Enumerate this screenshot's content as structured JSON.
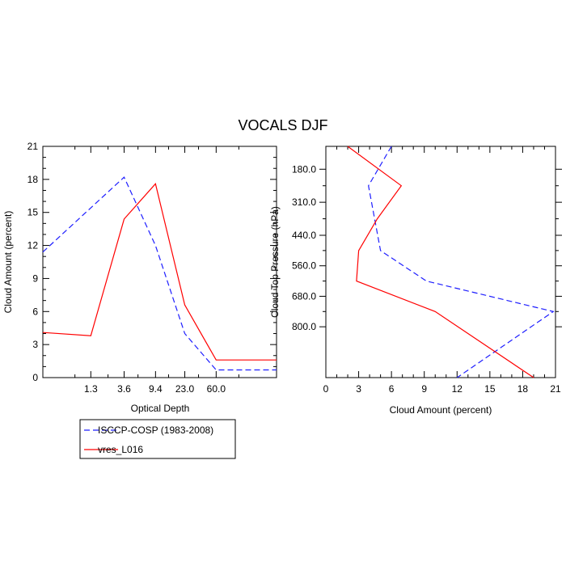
{
  "colors": {
    "isccp": "#1e1eff",
    "model": "#ff0000",
    "axis": "#000000"
  },
  "chart_data": [
    {
      "type": "line",
      "title": "VOCALS DJF",
      "xlabel": "Optical Depth",
      "ylabel": "Cloud Amount (percent)",
      "x_tick_labels": [
        "1.3",
        "3.6",
        "9.4",
        "23.0",
        "60.0"
      ],
      "y_ticks": [
        0,
        3,
        6,
        9,
        12,
        15,
        18,
        21
      ],
      "ylim": [
        0,
        21
      ],
      "x_scale": "categorical bins (log optical depth)",
      "series": [
        {
          "name": "ISCCP-COSP (1983-2008)",
          "style": "dashed",
          "x": [
            0.3,
            3.6,
            9.4,
            23.0,
            60.0,
            380.0
          ],
          "values": [
            11.4,
            18.2,
            12.0,
            4.0,
            0.7,
            0.7
          ]
        },
        {
          "name": "vres_L016",
          "style": "solid",
          "x": [
            0.3,
            1.3,
            3.6,
            9.4,
            23.0,
            60.0,
            380.0
          ],
          "values": [
            4.1,
            3.8,
            14.4,
            17.6,
            6.6,
            1.6,
            1.6
          ]
        }
      ],
      "legend": {
        "position": "bottom-left",
        "entries": [
          "ISCCP-COSP (1983-2008)",
          "vres_L016"
        ]
      }
    },
    {
      "type": "line",
      "xlabel": "Cloud Amount (percent)",
      "ylabel": "Cloud Top Pressure (hPa)",
      "x_ticks": [
        0,
        3,
        6,
        9,
        12,
        15,
        18,
        21
      ],
      "xlim": [
        0,
        21
      ],
      "y_tick_labels": [
        "180.0",
        "310.0",
        "440.0",
        "560.0",
        "680.0",
        "800.0"
      ],
      "y_scale": "pressure, increasing downward",
      "series": [
        {
          "name": "ISCCP-COSP (1983-2008)",
          "style": "dashed",
          "pressure": [
            90,
            245,
            500,
            620,
            740,
            1000
          ],
          "values": [
            6.0,
            3.9,
            5.0,
            9.2,
            20.8,
            12.0
          ]
        },
        {
          "name": "vres_L016",
          "style": "solid",
          "pressure": [
            90,
            245,
            375,
            500,
            620,
            740,
            1000
          ],
          "values": [
            2.0,
            6.9,
            4.7,
            3.0,
            2.8,
            10.0,
            19.0
          ]
        }
      ]
    }
  ]
}
